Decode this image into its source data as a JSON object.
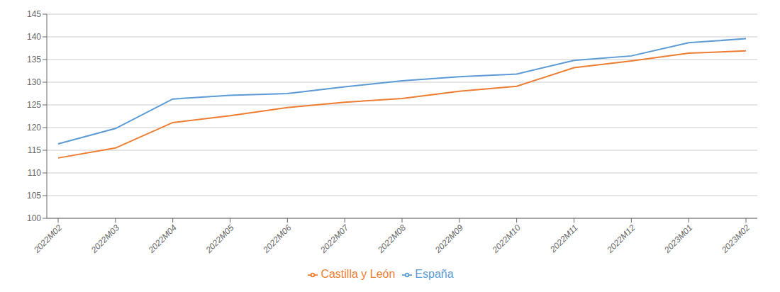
{
  "chart_data": {
    "type": "line",
    "categories": [
      "2022M02",
      "2022M03",
      "2022M04",
      "2022M05",
      "2022M06",
      "2022M07",
      "2022M08",
      "2022M09",
      "2022M10",
      "2022M11",
      "2022M12",
      "2023M01",
      "2023M02"
    ],
    "series": [
      {
        "name": "España",
        "color": "#5B9BD5",
        "values": [
          116.4,
          119.8,
          126.3,
          127.1,
          127.5,
          129.0,
          130.3,
          131.2,
          131.8,
          134.8,
          135.8,
          138.7,
          139.6
        ]
      },
      {
        "name": "Castilla y León",
        "color": "#ED7D31",
        "values": [
          113.3,
          115.5,
          121.1,
          122.6,
          124.4,
          125.6,
          126.4,
          128.0,
          129.1,
          133.2,
          134.7,
          136.4,
          136.9
        ]
      }
    ],
    "ylim": [
      100,
      145
    ],
    "yticks": [
      100,
      105,
      110,
      115,
      120,
      125,
      130,
      135,
      140,
      145
    ],
    "grid": true,
    "legend": "bottom"
  }
}
